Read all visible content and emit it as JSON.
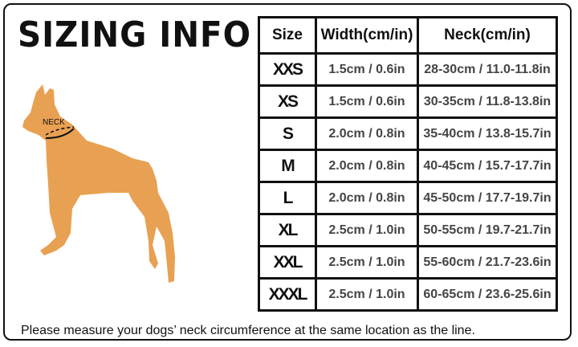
{
  "title": "SIZING INFO",
  "neck_label": "NECK",
  "dog_color": "#E8A052",
  "table": {
    "headers": [
      "Size",
      "Width(cm/in)",
      "Neck(cm/in)"
    ],
    "rows": [
      {
        "size": "XXS",
        "width": "1.5cm / 0.6in",
        "neck": "28-30cm / 11.0-11.8in"
      },
      {
        "size": "XS",
        "width": "1.5cm / 0.6in",
        "neck": "30-35cm / 11.8-13.8in"
      },
      {
        "size": "S",
        "width": "2.0cm / 0.8in",
        "neck": "35-40cm / 13.8-15.7in"
      },
      {
        "size": "M",
        "width": "2.0cm / 0.8in",
        "neck": "40-45cm / 15.7-17.7in"
      },
      {
        "size": "L",
        "width": "2.0cm / 0.8in",
        "neck": "45-50cm / 17.7-19.7in"
      },
      {
        "size": "XL",
        "width": "2.5cm / 1.0in",
        "neck": "50-55cm / 19.7-21.7in"
      },
      {
        "size": "XXL",
        "width": "2.5cm / 1.0in",
        "neck": "55-60cm / 21.7-23.6in"
      },
      {
        "size": "XXXL",
        "width": "2.5cm / 1.0in",
        "neck": "60-65cm / 23.6-25.6in"
      }
    ]
  },
  "note": "Please measure your dogs’  neck circumference at the same location as the line."
}
